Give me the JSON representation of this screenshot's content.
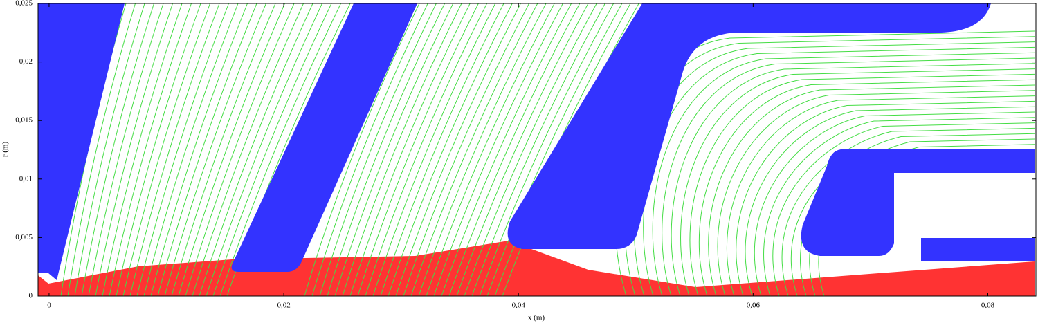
{
  "chart_data": {
    "type": "field",
    "x_label": "x (m)",
    "y_label": "r (m)",
    "xlim": [
      -0.00094,
      0.0841
    ],
    "ylim": [
      0,
      0.025
    ],
    "xticks": [
      0,
      {
        "value": 0.02,
        "label": "0,02"
      },
      {
        "value": 0.04,
        "label": "0,04"
      },
      {
        "value": 0.06,
        "label": "0,06"
      },
      {
        "value": 0.08,
        "label": "0,08"
      }
    ],
    "yticks": [
      0,
      {
        "value": 0.005,
        "label": "0,005"
      },
      {
        "value": 0.01,
        "label": "0,01"
      },
      {
        "value": 0.015,
        "label": "0,015"
      },
      {
        "value": 0.02,
        "label": "0,02"
      },
      {
        "value": 0.025,
        "label": "0,025"
      }
    ]
  }
}
